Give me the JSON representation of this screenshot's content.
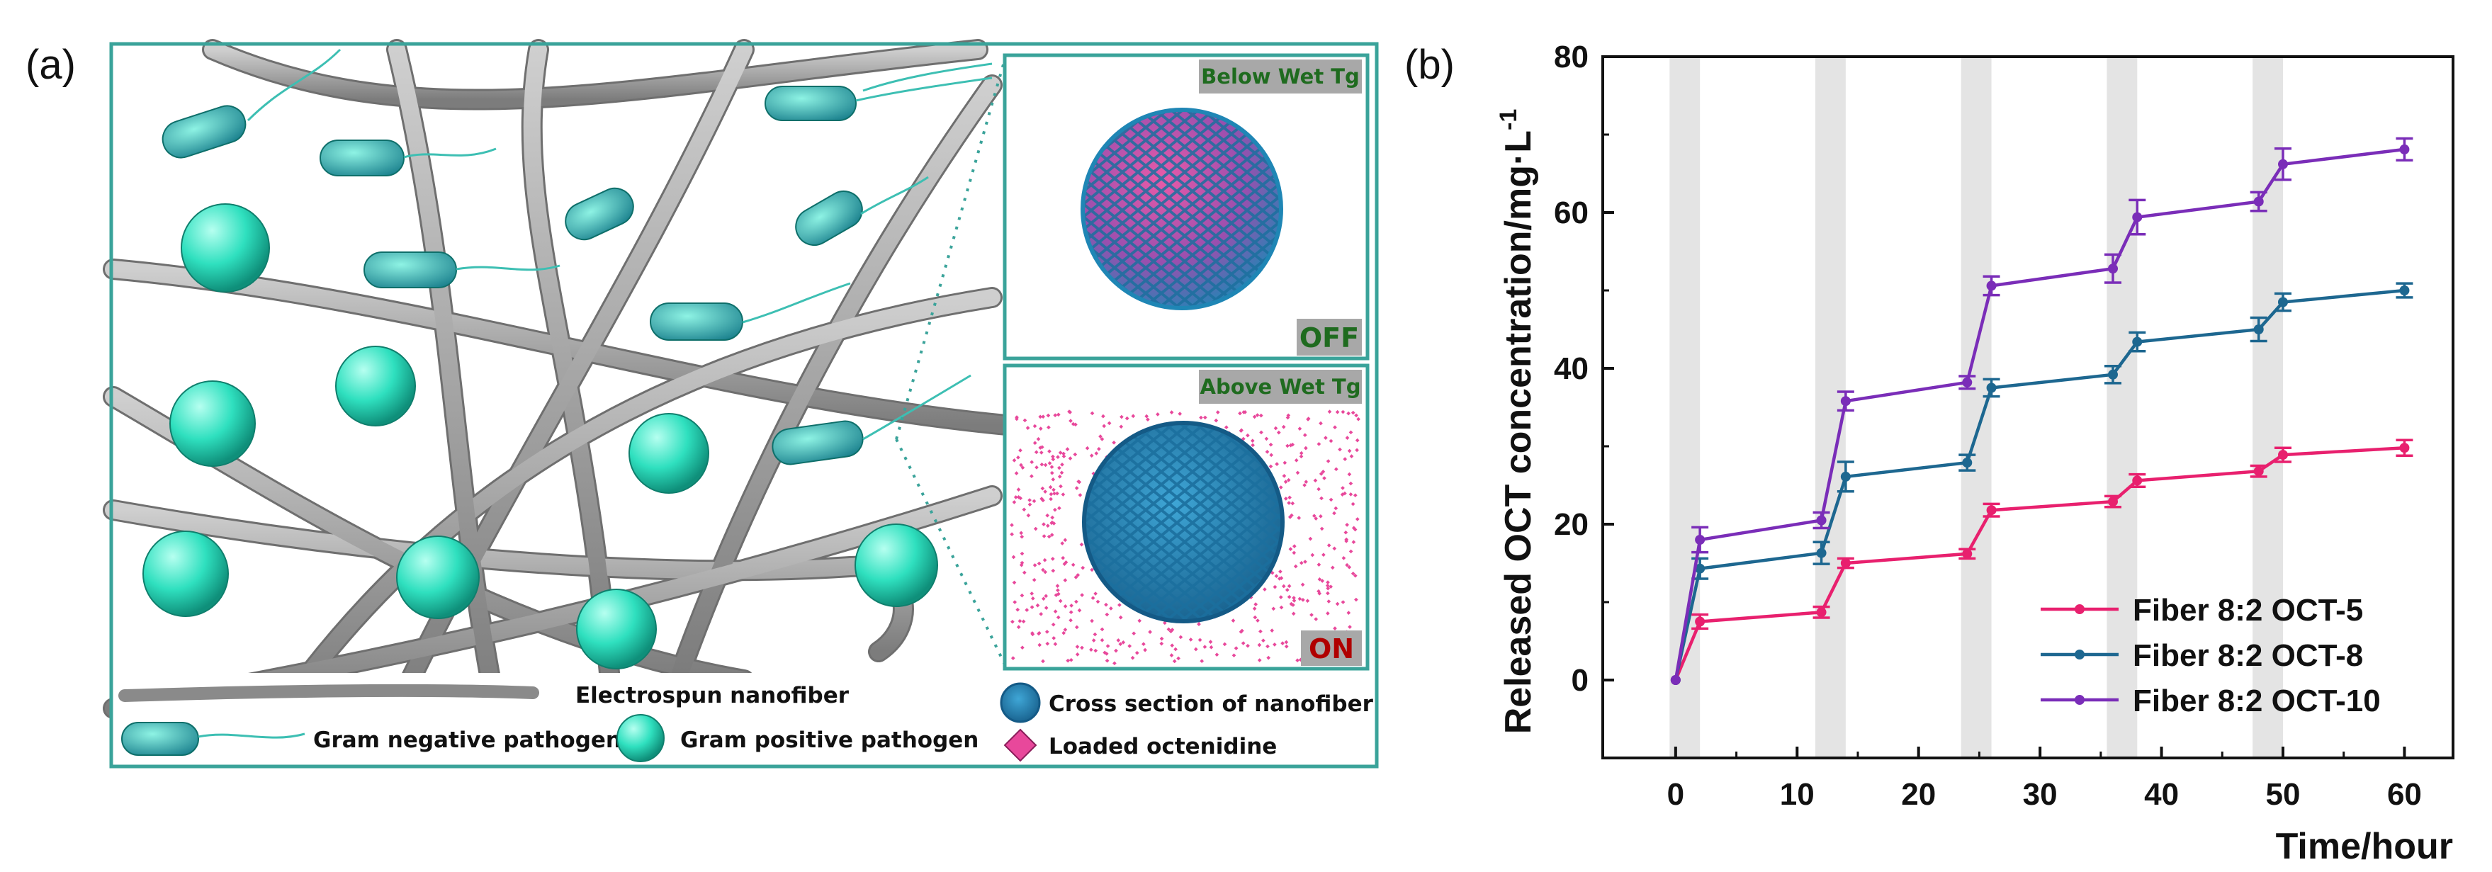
{
  "panel_a": {
    "letter": "(a)",
    "below_label": "Below Wet Tg",
    "off_label": "OFF",
    "above_label": "Above Wet Tg",
    "on_label": "ON",
    "legend": {
      "nanofiber": "Electrospun nanofiber",
      "gram_negative": "Gram negative pathogen",
      "gram_positive": "Gram positive pathogen",
      "cross_section": "Cross section of nanofiber",
      "loaded": "Loaded octenidine"
    },
    "colors": {
      "frame": "#3aa39a",
      "sphere": "#2ee0bf",
      "fiber": "#9a9a9a",
      "mesh": "#1f86b5",
      "drug": "#e8489b",
      "off": "#1f6b1f",
      "on": "#b00000"
    }
  },
  "panel_b": {
    "letter": "(b)"
  },
  "chart_data": {
    "type": "line",
    "xlabel": "Time/hour",
    "ylabel": "Released OCT concentration/mg·L",
    "ylabel_sup": "-1",
    "xlim": [
      -6,
      64
    ],
    "ylim": [
      -10,
      80
    ],
    "xticks": [
      0,
      10,
      20,
      30,
      40,
      50,
      60
    ],
    "yticks": [
      0,
      20,
      40,
      60,
      80
    ],
    "legend_position": "bottom-right",
    "shaded_intervals": [
      [
        -0.5,
        2
      ],
      [
        11.5,
        14
      ],
      [
        23.5,
        26
      ],
      [
        35.5,
        38
      ],
      [
        47.5,
        50
      ]
    ],
    "x": [
      0,
      2,
      12,
      14,
      24,
      26,
      36,
      38,
      48,
      50,
      60
    ],
    "series": [
      {
        "name": "Fiber 8:2 OCT-5",
        "color": "#e8206e",
        "values": [
          0,
          7.5,
          8.7,
          15.0,
          16.2,
          21.8,
          22.9,
          25.6,
          26.8,
          28.9,
          29.8
        ],
        "errors": [
          0,
          0.9,
          0.7,
          0.6,
          0.6,
          0.8,
          0.7,
          0.8,
          0.7,
          0.9,
          1.0
        ]
      },
      {
        "name": "Fiber 8:2 OCT-8",
        "color": "#1d6790",
        "values": [
          0,
          14.3,
          16.3,
          26.1,
          27.9,
          37.5,
          39.2,
          43.4,
          45.0,
          48.5,
          50.0
        ],
        "errors": [
          0,
          1.3,
          1.4,
          1.9,
          1.0,
          1.1,
          1.1,
          1.2,
          1.5,
          1.1,
          0.9
        ]
      },
      {
        "name": "Fiber 8:2 OCT-10",
        "color": "#7a2db8",
        "values": [
          0,
          18.0,
          20.5,
          35.8,
          38.2,
          50.6,
          52.8,
          59.4,
          61.4,
          66.2,
          68.1
        ],
        "errors": [
          0,
          1.6,
          1.0,
          1.2,
          0.8,
          1.2,
          1.8,
          2.2,
          1.2,
          2.0,
          1.4
        ]
      }
    ]
  }
}
